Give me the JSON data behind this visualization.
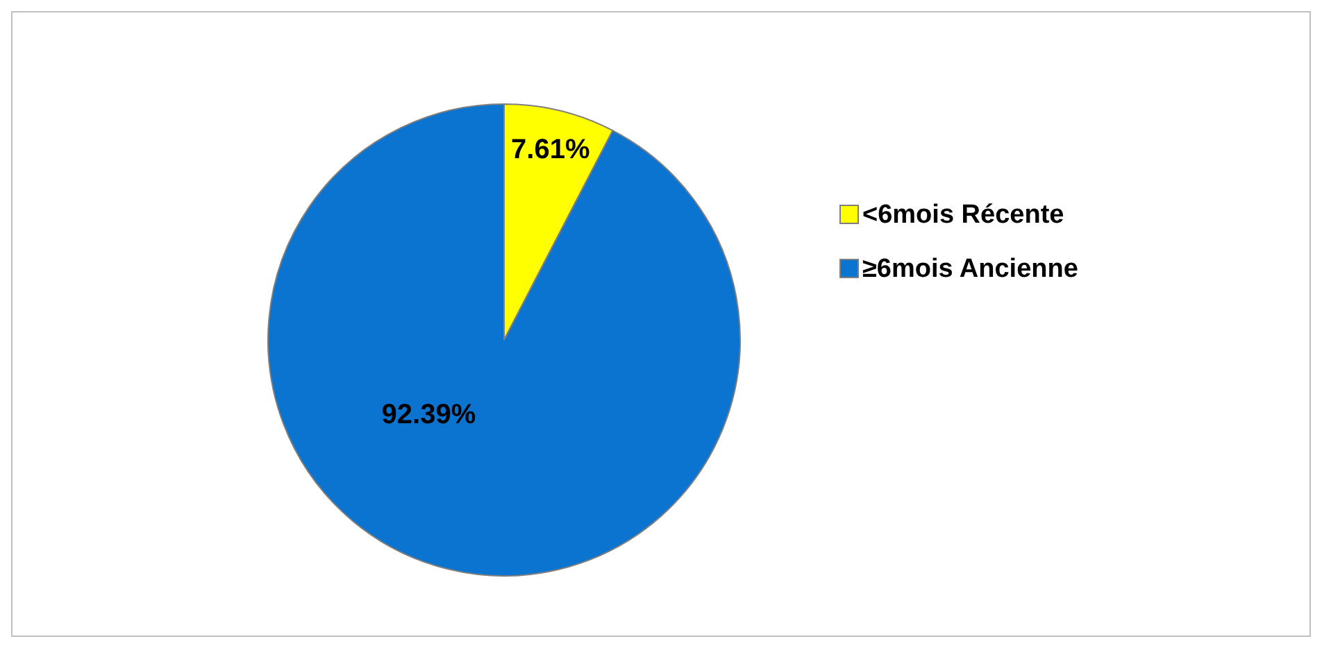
{
  "chart_data": {
    "type": "pie",
    "categories": [
      "<6mois Récente",
      "≥6mois Ancienne"
    ],
    "values": [
      7.61,
      92.39
    ],
    "colors": [
      "#ffff00",
      "#0a74d0"
    ],
    "value_labels": [
      "7.61%",
      "92.39%"
    ],
    "legend": "right"
  }
}
